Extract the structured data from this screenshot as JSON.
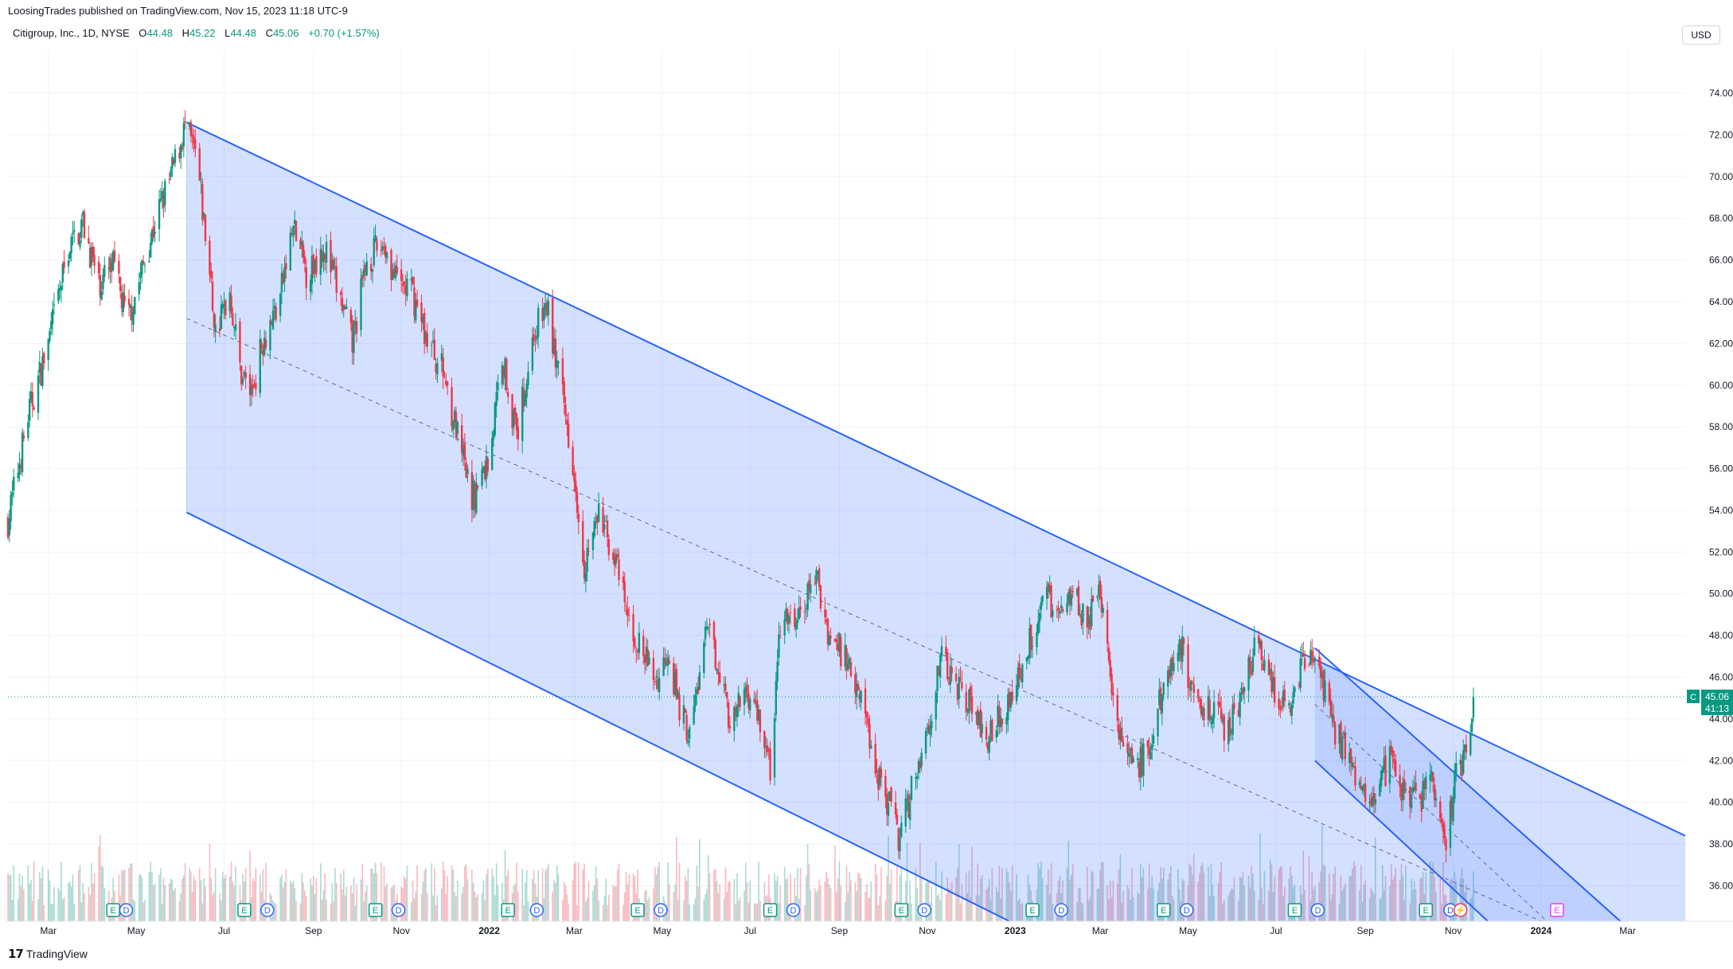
{
  "publisher_line": "LoosingTrades published on TradingView.com, Nov 15, 2023 11:18 UTC-9",
  "header": {
    "symbol": "Citigroup, Inc., 1D, NYSE",
    "open_label": "O",
    "open": "44.48",
    "high_label": "H",
    "high": "45.22",
    "low_label": "L",
    "low": "44.48",
    "close_label": "C",
    "close": "45.06",
    "change": "+0.70 (+1.57%)"
  },
  "currency_button": "USD",
  "footer_brand": "TradingView",
  "colors": {
    "up": "#089981",
    "down": "#f23645",
    "channel_line": "#2962ff",
    "channel_fill": "#2962ff",
    "grid": "#f0f3fa",
    "price_line": "#089981"
  },
  "chart_data": {
    "type": "candlestick",
    "title": "",
    "series_name": "",
    "x_ticks": [
      "Mar",
      "May",
      "Jul",
      "Sep",
      "Nov",
      "2022",
      "Mar",
      "May",
      "Jul",
      "Sep",
      "Nov",
      "2023",
      "Mar",
      "May",
      "Jul",
      "Sep",
      "Nov",
      "2024",
      "Mar"
    ],
    "y_ticks": [
      "36.00",
      "38.00",
      "40.00",
      "42.00",
      "44.00",
      "46.00",
      "48.00",
      "50.00",
      "52.00",
      "54.00",
      "56.00",
      "58.00",
      "60.00",
      "62.00",
      "64.00",
      "66.00",
      "68.00",
      "70.00",
      "72.00",
      "74.00"
    ],
    "ylim": [
      34.3,
      76.1
    ],
    "x_range": [
      "2021-02-01",
      "2024-04-10"
    ],
    "last_price_badge": {
      "symbol": "C",
      "price": "45.06",
      "countdown": "41:13"
    },
    "price_path": [
      [
        "2021-02-01",
        53.5
      ],
      [
        "2021-02-15",
        58.5
      ],
      [
        "2021-03-01",
        62.0
      ],
      [
        "2021-03-15",
        66.5
      ],
      [
        "2021-03-25",
        67.8
      ],
      [
        "2021-04-05",
        64.8
      ],
      [
        "2021-04-15",
        65.7
      ],
      [
        "2021-04-25",
        63.0
      ],
      [
        "2021-05-05",
        65.5
      ],
      [
        "2021-05-15",
        68.0
      ],
      [
        "2021-05-25",
        70.0
      ],
      [
        "2021-06-04",
        72.4
      ],
      [
        "2021-06-12",
        70.8
      ],
      [
        "2021-06-20",
        66.0
      ],
      [
        "2021-06-25",
        62.5
      ],
      [
        "2021-07-05",
        64.5
      ],
      [
        "2021-07-12",
        60.8
      ],
      [
        "2021-07-20",
        59.6
      ],
      [
        "2021-07-28",
        62.2
      ],
      [
        "2021-08-08",
        64.0
      ],
      [
        "2021-08-18",
        67.6
      ],
      [
        "2021-08-28",
        65.2
      ],
      [
        "2021-09-08",
        66.8
      ],
      [
        "2021-09-20",
        64.0
      ],
      [
        "2021-09-28",
        62.0
      ],
      [
        "2021-10-08",
        66.0
      ],
      [
        "2021-10-20",
        66.8
      ],
      [
        "2021-10-28",
        65.0
      ],
      [
        "2021-11-08",
        64.5
      ],
      [
        "2021-11-20",
        62.0
      ],
      [
        "2021-12-01",
        60.5
      ],
      [
        "2021-12-10",
        57.5
      ],
      [
        "2021-12-20",
        54.5
      ],
      [
        "2022-01-01",
        56.5
      ],
      [
        "2022-01-10",
        61.5
      ],
      [
        "2022-01-20",
        57.5
      ],
      [
        "2022-02-01",
        62.5
      ],
      [
        "2022-02-10",
        63.8
      ],
      [
        "2022-02-18",
        60.5
      ],
      [
        "2022-02-28",
        56.5
      ],
      [
        "2022-03-08",
        51.5
      ],
      [
        "2022-03-18",
        53.8
      ],
      [
        "2022-03-28",
        52.0
      ],
      [
        "2022-04-08",
        48.5
      ],
      [
        "2022-04-18",
        47.0
      ],
      [
        "2022-04-28",
        45.8
      ],
      [
        "2022-05-05",
        47.5
      ],
      [
        "2022-05-12",
        44.8
      ],
      [
        "2022-05-20",
        43.2
      ],
      [
        "2022-06-01",
        48.2
      ],
      [
        "2022-06-10",
        46.5
      ],
      [
        "2022-06-18",
        43.5
      ],
      [
        "2022-06-28",
        45.5
      ],
      [
        "2022-07-08",
        44.0
      ],
      [
        "2022-07-15",
        41.5
      ],
      [
        "2022-07-22",
        48.5
      ],
      [
        "2022-08-05",
        48.8
      ],
      [
        "2022-08-15",
        51.0
      ],
      [
        "2022-08-25",
        48.0
      ],
      [
        "2022-09-05",
        47.0
      ],
      [
        "2022-09-15",
        45.5
      ],
      [
        "2022-09-25",
        42.0
      ],
      [
        "2022-10-05",
        40.0
      ],
      [
        "2022-10-13",
        38.2
      ],
      [
        "2022-10-22",
        41.0
      ],
      [
        "2022-11-01",
        43.5
      ],
      [
        "2022-11-10",
        46.8
      ],
      [
        "2022-11-20",
        45.8
      ],
      [
        "2022-12-01",
        44.8
      ],
      [
        "2022-12-10",
        43.0
      ],
      [
        "2022-12-20",
        44.0
      ],
      [
        "2023-01-01",
        45.5
      ],
      [
        "2023-01-12",
        48.0
      ],
      [
        "2023-01-22",
        50.0
      ],
      [
        "2023-02-01",
        49.0
      ],
      [
        "2023-02-10",
        50.5
      ],
      [
        "2023-02-20",
        48.5
      ],
      [
        "2023-03-01",
        50.0
      ],
      [
        "2023-03-08",
        46.5
      ],
      [
        "2023-03-15",
        43.0
      ],
      [
        "2023-03-25",
        41.5
      ],
      [
        "2023-04-05",
        42.5
      ],
      [
        "2023-04-15",
        46.0
      ],
      [
        "2023-04-25",
        47.8
      ],
      [
        "2023-05-05",
        45.0
      ],
      [
        "2023-05-15",
        44.5
      ],
      [
        "2023-05-28",
        43.5
      ],
      [
        "2023-06-08",
        45.5
      ],
      [
        "2023-06-18",
        47.5
      ],
      [
        "2023-06-28",
        45.5
      ],
      [
        "2023-07-08",
        44.5
      ],
      [
        "2023-07-18",
        46.5
      ],
      [
        "2023-07-28",
        47.0
      ],
      [
        "2023-08-08",
        44.0
      ],
      [
        "2023-08-18",
        42.5
      ],
      [
        "2023-08-28",
        41.0
      ],
      [
        "2023-09-08",
        40.5
      ],
      [
        "2023-09-18",
        42.0
      ],
      [
        "2023-09-28",
        40.5
      ],
      [
        "2023-10-08",
        39.8
      ],
      [
        "2023-10-15",
        41.5
      ],
      [
        "2023-10-22",
        39.5
      ],
      [
        "2023-10-28",
        38.2
      ],
      [
        "2023-11-03",
        41.8
      ],
      [
        "2023-11-09",
        42.0
      ],
      [
        "2023-11-15",
        45.06
      ]
    ],
    "drawings": {
      "main_channel_upper": [
        [
          "2021-06-05",
          72.6
        ],
        [
          "2024-04-10",
          38.4
        ]
      ],
      "main_channel_lower": [
        [
          "2021-06-05",
          53.9
        ],
        [
          "2022-12-28",
          34.3
        ]
      ],
      "main_channel_mid_dashed": [
        [
          "2021-06-05",
          63.2
        ],
        [
          "2024-01-01",
          34.3
        ]
      ],
      "inner_channel_upper": [
        [
          "2023-07-28",
          47.4
        ],
        [
          "2024-02-25",
          34.3
        ]
      ],
      "inner_channel_lower": [
        [
          "2023-07-28",
          42.0
        ],
        [
          "2023-11-25",
          34.3
        ]
      ],
      "inner_channel_mid_dashed": [
        [
          "2023-07-28",
          44.7
        ],
        [
          "2024-01-05",
          34.3
        ]
      ]
    },
    "event_markers": [
      {
        "date": "2021-04-15",
        "label": "E"
      },
      {
        "date": "2021-04-24",
        "label": "D"
      },
      {
        "date": "2021-07-15",
        "label": "E"
      },
      {
        "date": "2021-07-31",
        "label": "D"
      },
      {
        "date": "2021-10-14",
        "label": "E"
      },
      {
        "date": "2021-10-30",
        "label": "D"
      },
      {
        "date": "2022-01-14",
        "label": "E"
      },
      {
        "date": "2022-02-03",
        "label": "D"
      },
      {
        "date": "2022-04-14",
        "label": "E"
      },
      {
        "date": "2022-04-30",
        "label": "D"
      },
      {
        "date": "2022-07-15",
        "label": "E"
      },
      {
        "date": "2022-07-31",
        "label": "D"
      },
      {
        "date": "2022-10-14",
        "label": "E"
      },
      {
        "date": "2022-10-30",
        "label": "D"
      },
      {
        "date": "2023-01-13",
        "label": "E"
      },
      {
        "date": "2023-02-02",
        "label": "D"
      },
      {
        "date": "2023-04-14",
        "label": "E"
      },
      {
        "date": "2023-04-30",
        "label": "D"
      },
      {
        "date": "2023-07-14",
        "label": "E"
      },
      {
        "date": "2023-07-30",
        "label": "D"
      },
      {
        "date": "2023-10-13",
        "label": "E"
      },
      {
        "date": "2023-10-30",
        "label": "D"
      },
      {
        "date": "2023-11-06",
        "label": "⚡"
      },
      {
        "date": "2024-01-12",
        "label": "E"
      }
    ]
  }
}
